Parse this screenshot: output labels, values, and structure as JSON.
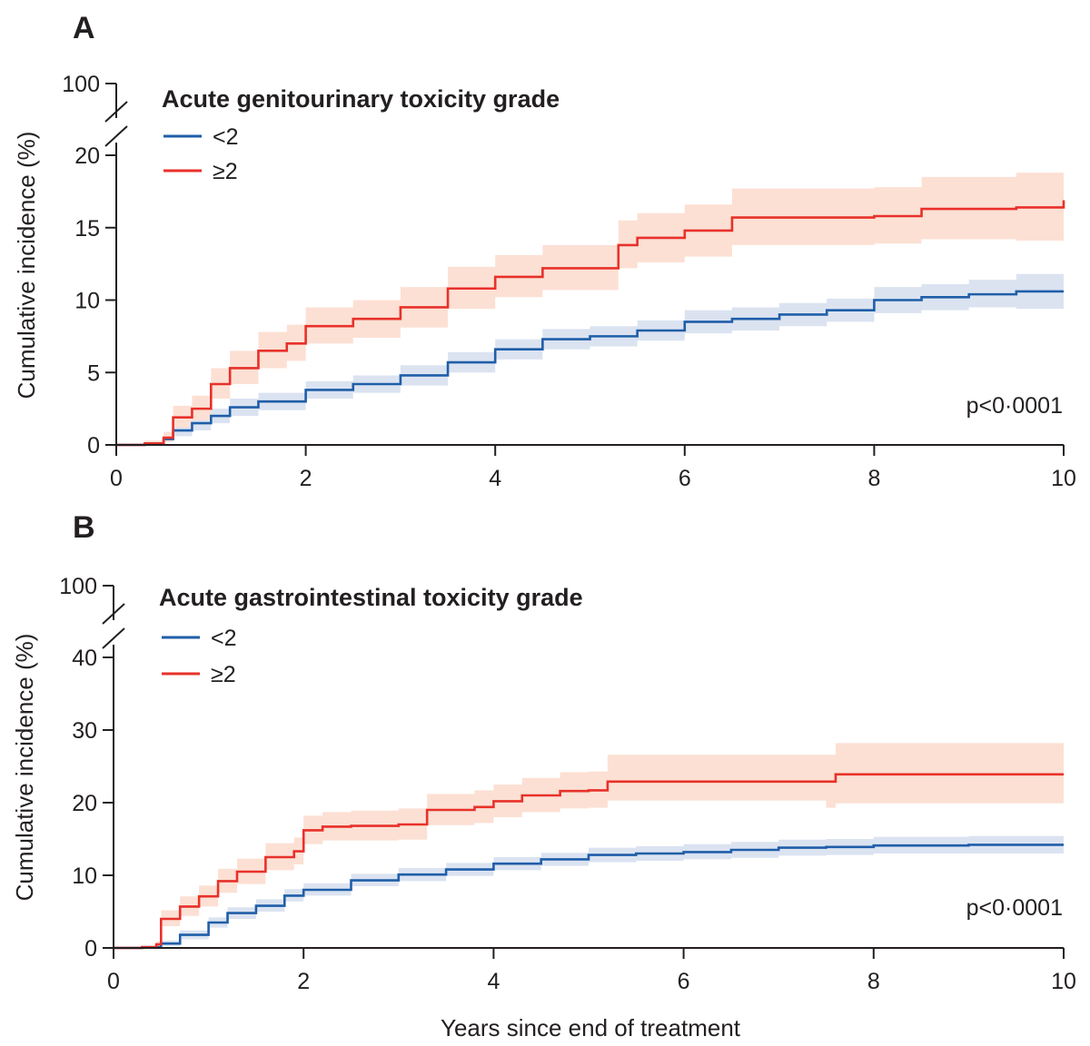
{
  "chart_data": [
    {
      "type": "line",
      "panel": "A",
      "legend_title": "Acute genitourinary toxicity grade",
      "ylabel": "Cumulative incidence (%)",
      "xlabel": "",
      "xlim": [
        0,
        10
      ],
      "x_ticks": [
        0,
        2,
        4,
        6,
        8,
        10
      ],
      "ylim": [
        0,
        20
      ],
      "y_ticks": [
        0,
        5,
        10,
        15,
        20
      ],
      "y_break_label": "100",
      "annotation": "p<0·0001",
      "grid": false,
      "legend_position": "top-left",
      "colors": {
        "<2": "#1f5ea8",
        "≥2": "#e8312a",
        "band_<2": "#dbe3f1",
        "band_≥2": "#fce0d4"
      },
      "series": [
        {
          "name": "<2",
          "x": [
            0,
            0.3,
            0.5,
            0.6,
            0.8,
            1.0,
            1.2,
            1.5,
            2.0,
            2.5,
            3.0,
            3.5,
            4.0,
            4.5,
            5.0,
            5.5,
            6.0,
            6.5,
            7.0,
            7.5,
            8.0,
            8.5,
            9.0,
            9.5,
            10.0
          ],
          "y": [
            0,
            0.1,
            0.4,
            1.0,
            1.5,
            2.0,
            2.6,
            3.0,
            3.8,
            4.2,
            4.8,
            5.7,
            6.6,
            7.3,
            7.5,
            7.9,
            8.5,
            8.7,
            9.0,
            9.3,
            10.0,
            10.2,
            10.4,
            10.6,
            10.6
          ],
          "ci_lower": [
            0,
            0,
            0.2,
            0.6,
            1.0,
            1.5,
            2.0,
            2.4,
            3.2,
            3.6,
            4.1,
            5.0,
            5.9,
            6.6,
            6.8,
            7.2,
            7.7,
            7.9,
            8.2,
            8.5,
            9.1,
            9.3,
            9.5,
            9.4,
            9.4
          ],
          "ci_upper": [
            0,
            0.2,
            0.6,
            1.4,
            2.0,
            2.5,
            3.2,
            3.6,
            4.4,
            4.8,
            5.5,
            6.4,
            7.3,
            8.0,
            8.2,
            8.6,
            9.3,
            9.5,
            9.8,
            10.1,
            10.9,
            11.1,
            11.4,
            11.8,
            11.9
          ]
        },
        {
          "name": "≥2",
          "x": [
            0,
            0.3,
            0.5,
            0.6,
            0.8,
            1.0,
            1.2,
            1.5,
            1.8,
            2.0,
            2.5,
            3.0,
            3.5,
            4.0,
            4.5,
            5.0,
            5.3,
            5.5,
            6.0,
            6.5,
            7.0,
            7.5,
            8.0,
            8.5,
            9.0,
            9.5,
            10.0
          ],
          "y": [
            0,
            0.1,
            0.5,
            1.9,
            2.5,
            4.2,
            5.3,
            6.5,
            7.0,
            8.2,
            8.7,
            9.5,
            10.8,
            11.6,
            12.2,
            12.2,
            13.8,
            14.3,
            14.8,
            15.7,
            15.7,
            15.7,
            15.8,
            16.3,
            16.3,
            16.4,
            16.9
          ],
          "ci_lower": [
            0,
            0,
            0.2,
            1.2,
            1.7,
            3.2,
            4.2,
            5.3,
            5.8,
            7.0,
            7.4,
            8.1,
            9.4,
            10.2,
            10.7,
            10.7,
            12.2,
            12.6,
            13.0,
            13.8,
            13.8,
            13.8,
            13.9,
            14.2,
            14.2,
            14.1,
            14.1
          ],
          "ci_upper": [
            0,
            0.3,
            0.9,
            2.7,
            3.4,
            5.3,
            6.5,
            7.8,
            8.3,
            9.5,
            10.0,
            10.9,
            12.3,
            13.1,
            13.8,
            13.8,
            15.5,
            16.0,
            16.6,
            17.7,
            17.7,
            17.7,
            17.8,
            18.5,
            18.5,
            18.8,
            19.9
          ]
        }
      ]
    },
    {
      "type": "line",
      "panel": "B",
      "legend_title": "Acute gastrointestinal toxicity grade",
      "ylabel": "Cumulative incidence (%)",
      "xlabel": "Years since end of treatment",
      "xlim": [
        0,
        10
      ],
      "x_ticks": [
        0,
        2,
        4,
        6,
        8,
        10
      ],
      "ylim": [
        0,
        40
      ],
      "y_ticks": [
        0,
        10,
        20,
        30,
        40
      ],
      "y_break_label": "100",
      "annotation": "p<0·0001",
      "grid": false,
      "legend_position": "top-left",
      "colors": {
        "<2": "#1f5ea8",
        "≥2": "#e8312a",
        "band_<2": "#dbe3f1",
        "band_≥2": "#fce0d4"
      },
      "series": [
        {
          "name": "<2",
          "x": [
            0,
            0.3,
            0.5,
            0.7,
            1.0,
            1.2,
            1.5,
            1.8,
            2.0,
            2.5,
            3.0,
            3.5,
            4.0,
            4.5,
            5.0,
            5.5,
            6.0,
            6.5,
            7.0,
            7.5,
            8.0,
            9.0,
            10.0
          ],
          "y": [
            0,
            0.1,
            0.6,
            1.8,
            3.5,
            4.8,
            5.8,
            7.2,
            8.0,
            9.3,
            10.1,
            10.8,
            11.6,
            12.2,
            12.8,
            13.0,
            13.2,
            13.5,
            13.8,
            13.9,
            14.1,
            14.2,
            14.2
          ],
          "ci_lower": [
            0,
            0,
            0.3,
            1.2,
            2.8,
            4.0,
            5.0,
            6.4,
            7.2,
            8.5,
            9.2,
            9.9,
            10.7,
            11.3,
            11.8,
            12.0,
            12.2,
            12.4,
            12.7,
            12.8,
            13.0,
            13.0,
            13.0
          ],
          "ci_upper": [
            0,
            0.3,
            1.0,
            2.4,
            4.2,
            5.6,
            6.7,
            8.1,
            8.9,
            10.2,
            11.0,
            11.7,
            12.5,
            13.1,
            13.8,
            14.0,
            14.3,
            14.6,
            14.9,
            15.0,
            15.3,
            15.4,
            15.5
          ]
        },
        {
          "name": "≥2",
          "x": [
            0,
            0.3,
            0.45,
            0.5,
            0.7,
            0.9,
            1.1,
            1.3,
            1.6,
            1.9,
            2.0,
            2.2,
            2.5,
            3.0,
            3.3,
            3.8,
            4.0,
            4.3,
            4.7,
            5.0,
            5.2,
            5.5,
            6.0,
            7.0,
            7.5,
            7.6,
            8.0,
            9.0,
            10.0
          ],
          "y": [
            0,
            0.1,
            0.5,
            4.0,
            5.7,
            7.1,
            9.2,
            10.5,
            12.5,
            13.3,
            16.2,
            16.7,
            16.8,
            17.0,
            19.0,
            19.4,
            20.2,
            21.0,
            21.6,
            21.7,
            22.9,
            22.9,
            22.9,
            22.9,
            22.9,
            23.9,
            23.9,
            23.9,
            23.9
          ],
          "ci_lower": [
            0,
            0,
            0.2,
            3.0,
            4.4,
            5.7,
            7.6,
            8.8,
            10.7,
            11.5,
            14.3,
            14.8,
            14.8,
            14.9,
            16.9,
            17.2,
            18.0,
            18.7,
            19.2,
            19.3,
            20.3,
            20.3,
            20.3,
            20.3,
            19.3,
            19.9,
            19.9,
            19.9,
            19.9
          ],
          "ci_upper": [
            0,
            0.3,
            0.9,
            5.2,
            7.1,
            8.6,
            10.9,
            12.3,
            14.4,
            15.2,
            18.2,
            18.7,
            18.9,
            19.2,
            21.2,
            21.7,
            22.5,
            23.4,
            24.2,
            24.3,
            26.6,
            26.6,
            26.6,
            26.6,
            26.6,
            28.2,
            28.2,
            28.2,
            28.2
          ]
        }
      ]
    }
  ]
}
